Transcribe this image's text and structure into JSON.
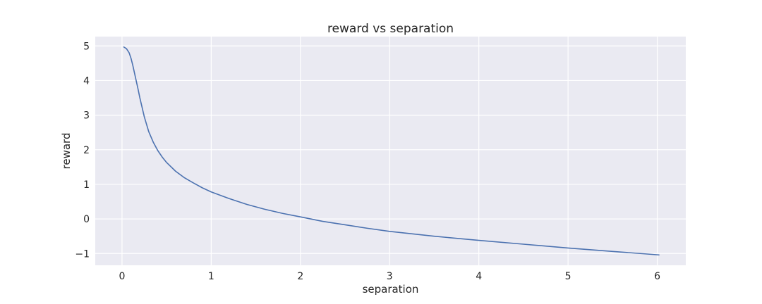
{
  "chart_data": {
    "type": "line",
    "title": "reward vs separation",
    "xlabel": "separation",
    "ylabel": "reward",
    "xlim": [
      -0.3,
      6.32
    ],
    "ylim": [
      -1.34,
      5.27
    ],
    "xticks": [
      0,
      1,
      2,
      3,
      4,
      5,
      6
    ],
    "yticks": [
      -1,
      0,
      1,
      2,
      3,
      4,
      5
    ],
    "xtick_labels": [
      "0",
      "1",
      "2",
      "3",
      "4",
      "5",
      "6"
    ],
    "ytick_labels": [
      "−1",
      "0",
      "1",
      "2",
      "3",
      "4",
      "5"
    ],
    "grid": true,
    "legend": "none",
    "colors": {
      "plot_background": "#EAEAF2",
      "grid": "#FFFFFF",
      "series": "#4C72B0"
    },
    "series": [
      {
        "color": "#4C72B0",
        "x": [
          0.02,
          0.05,
          0.08,
          0.1,
          0.12,
          0.15,
          0.18,
          0.2,
          0.25,
          0.3,
          0.35,
          0.4,
          0.45,
          0.5,
          0.6,
          0.7,
          0.8,
          0.9,
          1.0,
          1.2,
          1.4,
          1.6,
          1.8,
          2.0,
          2.25,
          2.5,
          2.75,
          3.0,
          3.5,
          4.0,
          4.5,
          5.0,
          5.5,
          6.02
        ],
        "y": [
          4.97,
          4.92,
          4.8,
          4.65,
          4.45,
          4.1,
          3.75,
          3.5,
          2.95,
          2.52,
          2.22,
          1.98,
          1.79,
          1.63,
          1.38,
          1.19,
          1.04,
          0.9,
          0.78,
          0.59,
          0.42,
          0.28,
          0.16,
          0.06,
          -0.07,
          -0.17,
          -0.27,
          -0.36,
          -0.5,
          -0.62,
          -0.73,
          -0.84,
          -0.94,
          -1.04
        ]
      }
    ]
  }
}
